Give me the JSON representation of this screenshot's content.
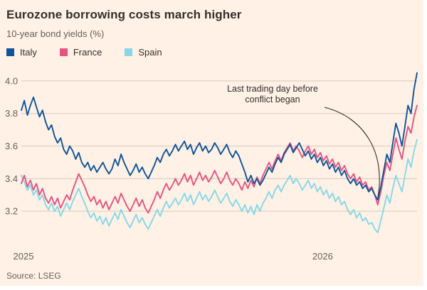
{
  "header": {
    "title": "Eurozone borrowing costs march higher",
    "subtitle": "10-year bond yields (%)"
  },
  "annotation": {
    "text": "Last trading day before\nconflict began"
  },
  "source": "Source: LSEG",
  "colors": {
    "background": "#FFF1E5",
    "grid": "#D8CABC",
    "axis_text": "#66605C",
    "annotation_line": "#33302E",
    "italy": "#0F5499",
    "france": "#E55481",
    "spain": "#86D8E8"
  },
  "chart_data": {
    "type": "line",
    "title": "Eurozone borrowing costs march higher",
    "subtitle": "10-year bond yields (%)",
    "ylabel": "10-year bond yields (%)",
    "ylim": [
      3.0,
      4.1
    ],
    "y_ticks": [
      3.2,
      3.4,
      3.6,
      3.8,
      4.0
    ],
    "x_ticks": [
      {
        "label": "2025",
        "frac": 0.0
      },
      {
        "label": "2026",
        "frac": 0.756
      }
    ],
    "grid": true,
    "legend_position": "top-left",
    "annotation_point": {
      "series": "Italy",
      "index": 118,
      "value": 3.27
    },
    "series": [
      {
        "name": "Italy",
        "color": "#0F5499",
        "values": [
          3.82,
          3.88,
          3.79,
          3.85,
          3.9,
          3.84,
          3.78,
          3.82,
          3.75,
          3.7,
          3.73,
          3.66,
          3.62,
          3.65,
          3.58,
          3.55,
          3.6,
          3.57,
          3.52,
          3.56,
          3.5,
          3.47,
          3.5,
          3.45,
          3.48,
          3.44,
          3.47,
          3.5,
          3.46,
          3.43,
          3.46,
          3.52,
          3.48,
          3.55,
          3.5,
          3.46,
          3.42,
          3.45,
          3.49,
          3.44,
          3.47,
          3.43,
          3.4,
          3.44,
          3.48,
          3.53,
          3.5,
          3.55,
          3.58,
          3.54,
          3.57,
          3.61,
          3.57,
          3.6,
          3.63,
          3.58,
          3.61,
          3.55,
          3.59,
          3.62,
          3.57,
          3.6,
          3.56,
          3.58,
          3.62,
          3.59,
          3.55,
          3.58,
          3.61,
          3.56,
          3.53,
          3.57,
          3.54,
          3.49,
          3.44,
          3.38,
          3.42,
          3.37,
          3.4,
          3.36,
          3.39,
          3.43,
          3.47,
          3.44,
          3.49,
          3.53,
          3.5,
          3.55,
          3.58,
          3.61,
          3.56,
          3.59,
          3.62,
          3.58,
          3.54,
          3.57,
          3.52,
          3.55,
          3.5,
          3.53,
          3.48,
          3.51,
          3.46,
          3.49,
          3.44,
          3.47,
          3.42,
          3.45,
          3.4,
          3.37,
          3.4,
          3.36,
          3.38,
          3.34,
          3.36,
          3.32,
          3.34,
          3.3,
          3.27,
          3.35,
          3.45,
          3.55,
          3.5,
          3.62,
          3.74,
          3.68,
          3.6,
          3.72,
          3.85,
          3.8,
          3.95,
          4.05
        ]
      },
      {
        "name": "France",
        "color": "#E55481",
        "values": [
          3.37,
          3.42,
          3.35,
          3.39,
          3.33,
          3.37,
          3.3,
          3.34,
          3.28,
          3.25,
          3.29,
          3.24,
          3.28,
          3.22,
          3.26,
          3.3,
          3.27,
          3.33,
          3.38,
          3.43,
          3.39,
          3.35,
          3.3,
          3.26,
          3.29,
          3.24,
          3.27,
          3.22,
          3.26,
          3.21,
          3.25,
          3.29,
          3.25,
          3.31,
          3.27,
          3.23,
          3.2,
          3.24,
          3.28,
          3.23,
          3.27,
          3.22,
          3.19,
          3.23,
          3.27,
          3.32,
          3.28,
          3.33,
          3.37,
          3.33,
          3.36,
          3.4,
          3.36,
          3.39,
          3.43,
          3.38,
          3.42,
          3.36,
          3.4,
          3.44,
          3.39,
          3.42,
          3.38,
          3.41,
          3.45,
          3.41,
          3.37,
          3.4,
          3.44,
          3.39,
          3.36,
          3.4,
          3.37,
          3.33,
          3.38,
          3.34,
          3.39,
          3.35,
          3.41,
          3.37,
          3.42,
          3.46,
          3.5,
          3.46,
          3.51,
          3.55,
          3.51,
          3.56,
          3.59,
          3.62,
          3.57,
          3.6,
          3.57,
          3.53,
          3.57,
          3.6,
          3.55,
          3.58,
          3.53,
          3.56,
          3.51,
          3.54,
          3.49,
          3.52,
          3.47,
          3.5,
          3.45,
          3.48,
          3.43,
          3.4,
          3.43,
          3.38,
          3.41,
          3.36,
          3.38,
          3.33,
          3.35,
          3.3,
          3.24,
          3.32,
          3.42,
          3.5,
          3.45,
          3.55,
          3.65,
          3.58,
          3.52,
          3.63,
          3.72,
          3.68,
          3.78,
          3.85
        ]
      },
      {
        "name": "Spain",
        "color": "#86D8E8",
        "values": [
          3.42,
          3.38,
          3.33,
          3.36,
          3.3,
          3.33,
          3.27,
          3.3,
          3.24,
          3.21,
          3.25,
          3.2,
          3.23,
          3.17,
          3.21,
          3.25,
          3.21,
          3.26,
          3.3,
          3.34,
          3.29,
          3.25,
          3.2,
          3.16,
          3.19,
          3.14,
          3.17,
          3.12,
          3.16,
          3.11,
          3.15,
          3.19,
          3.15,
          3.21,
          3.17,
          3.13,
          3.1,
          3.14,
          3.18,
          3.13,
          3.16,
          3.12,
          3.09,
          3.13,
          3.17,
          3.21,
          3.17,
          3.22,
          3.26,
          3.22,
          3.25,
          3.28,
          3.24,
          3.27,
          3.31,
          3.26,
          3.3,
          3.24,
          3.28,
          3.32,
          3.27,
          3.3,
          3.26,
          3.29,
          3.33,
          3.29,
          3.25,
          3.28,
          3.31,
          3.26,
          3.23,
          3.27,
          3.24,
          3.2,
          3.24,
          3.19,
          3.23,
          3.18,
          3.24,
          3.2,
          3.25,
          3.28,
          3.32,
          3.28,
          3.33,
          3.36,
          3.32,
          3.36,
          3.39,
          3.42,
          3.37,
          3.4,
          3.37,
          3.33,
          3.36,
          3.39,
          3.34,
          3.37,
          3.32,
          3.35,
          3.3,
          3.33,
          3.28,
          3.31,
          3.26,
          3.29,
          3.24,
          3.26,
          3.21,
          3.18,
          3.21,
          3.16,
          3.19,
          3.14,
          3.16,
          3.12,
          3.13,
          3.09,
          3.07,
          3.14,
          3.22,
          3.3,
          3.25,
          3.34,
          3.42,
          3.37,
          3.32,
          3.42,
          3.52,
          3.47,
          3.57,
          3.64
        ]
      }
    ]
  }
}
